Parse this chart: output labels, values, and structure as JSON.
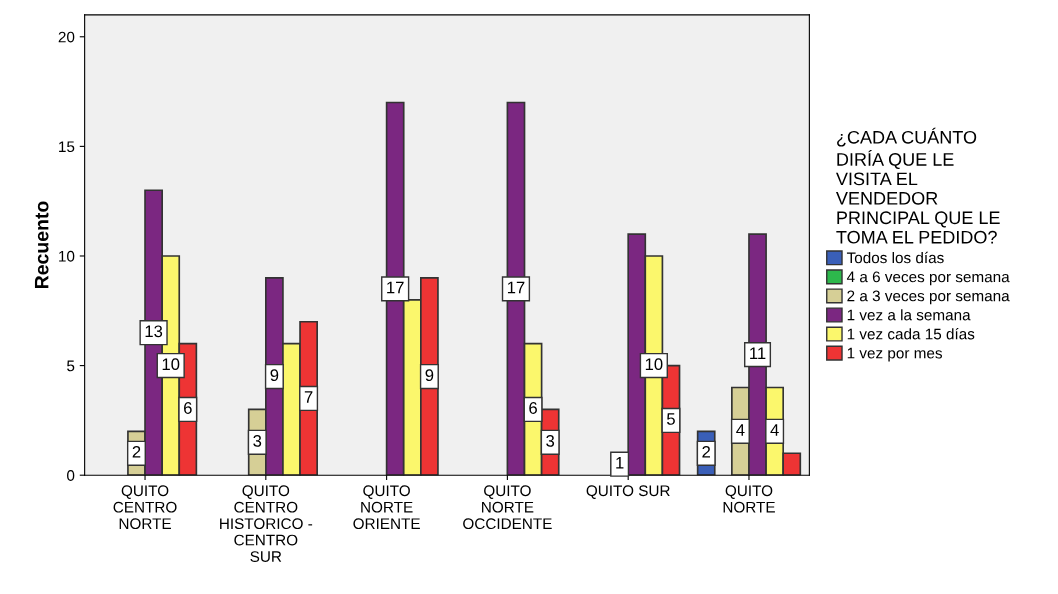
{
  "chart_data": {
    "type": "bar",
    "ylabel": "Recuento",
    "legend_title": "¿CADA CUÁNTO\nDIRÍA QUE LE\nVISITA EL\nVENDEDOR\nPRINCIPAL QUE LE\nTOMA EL PEDIDO?",
    "categories": [
      "QUITO\nCENTRO\nNORTE",
      "QUITO\nCENTRO\nHISTORICO -\nCENTRO\nSUR",
      "QUITO\nNORTE\nORIENTE",
      "QUITO\nNORTE\nOCCIDENTE",
      "QUITO SUR",
      "QUITO\nNORTE"
    ],
    "series": [
      {
        "name": "Todos los días",
        "color": "#3a5fb8",
        "values": [
          null,
          null,
          null,
          null,
          null,
          2
        ],
        "value_labels": [
          null,
          null,
          null,
          null,
          null,
          "2"
        ]
      },
      {
        "name": "4 a 6 veces por semana",
        "color": "#2db84c",
        "values": [
          null,
          null,
          null,
          null,
          null,
          null
        ],
        "value_labels": [
          null,
          null,
          null,
          null,
          null,
          null
        ]
      },
      {
        "name": "2 a 3 veces por semana",
        "color": "#d6cf96",
        "values": [
          2,
          3,
          null,
          null,
          1,
          4
        ],
        "value_labels": [
          "2",
          "3",
          null,
          null,
          "1",
          "4"
        ]
      },
      {
        "name": "1 vez a la semana",
        "color": "#7b2781",
        "values": [
          13,
          9,
          17,
          17,
          11,
          11
        ],
        "value_labels": [
          "13",
          "9",
          "17",
          "17",
          null,
          "11"
        ]
      },
      {
        "name": "1 vez cada 15 días",
        "color": "#fbf76c",
        "values": [
          10,
          6,
          8,
          6,
          10,
          4
        ],
        "value_labels": [
          "10",
          null,
          null,
          "6",
          "10",
          "4"
        ]
      },
      {
        "name": "1 vez por mes",
        "color": "#ee3434",
        "values": [
          6,
          7,
          9,
          3,
          5,
          1
        ],
        "value_labels": [
          "6",
          "7",
          "9",
          "3",
          "5",
          null
        ]
      }
    ],
    "ylim": [
      0,
      21
    ],
    "yticks": [
      0,
      5,
      10,
      15,
      20
    ],
    "grid": false,
    "legend": "right"
  }
}
